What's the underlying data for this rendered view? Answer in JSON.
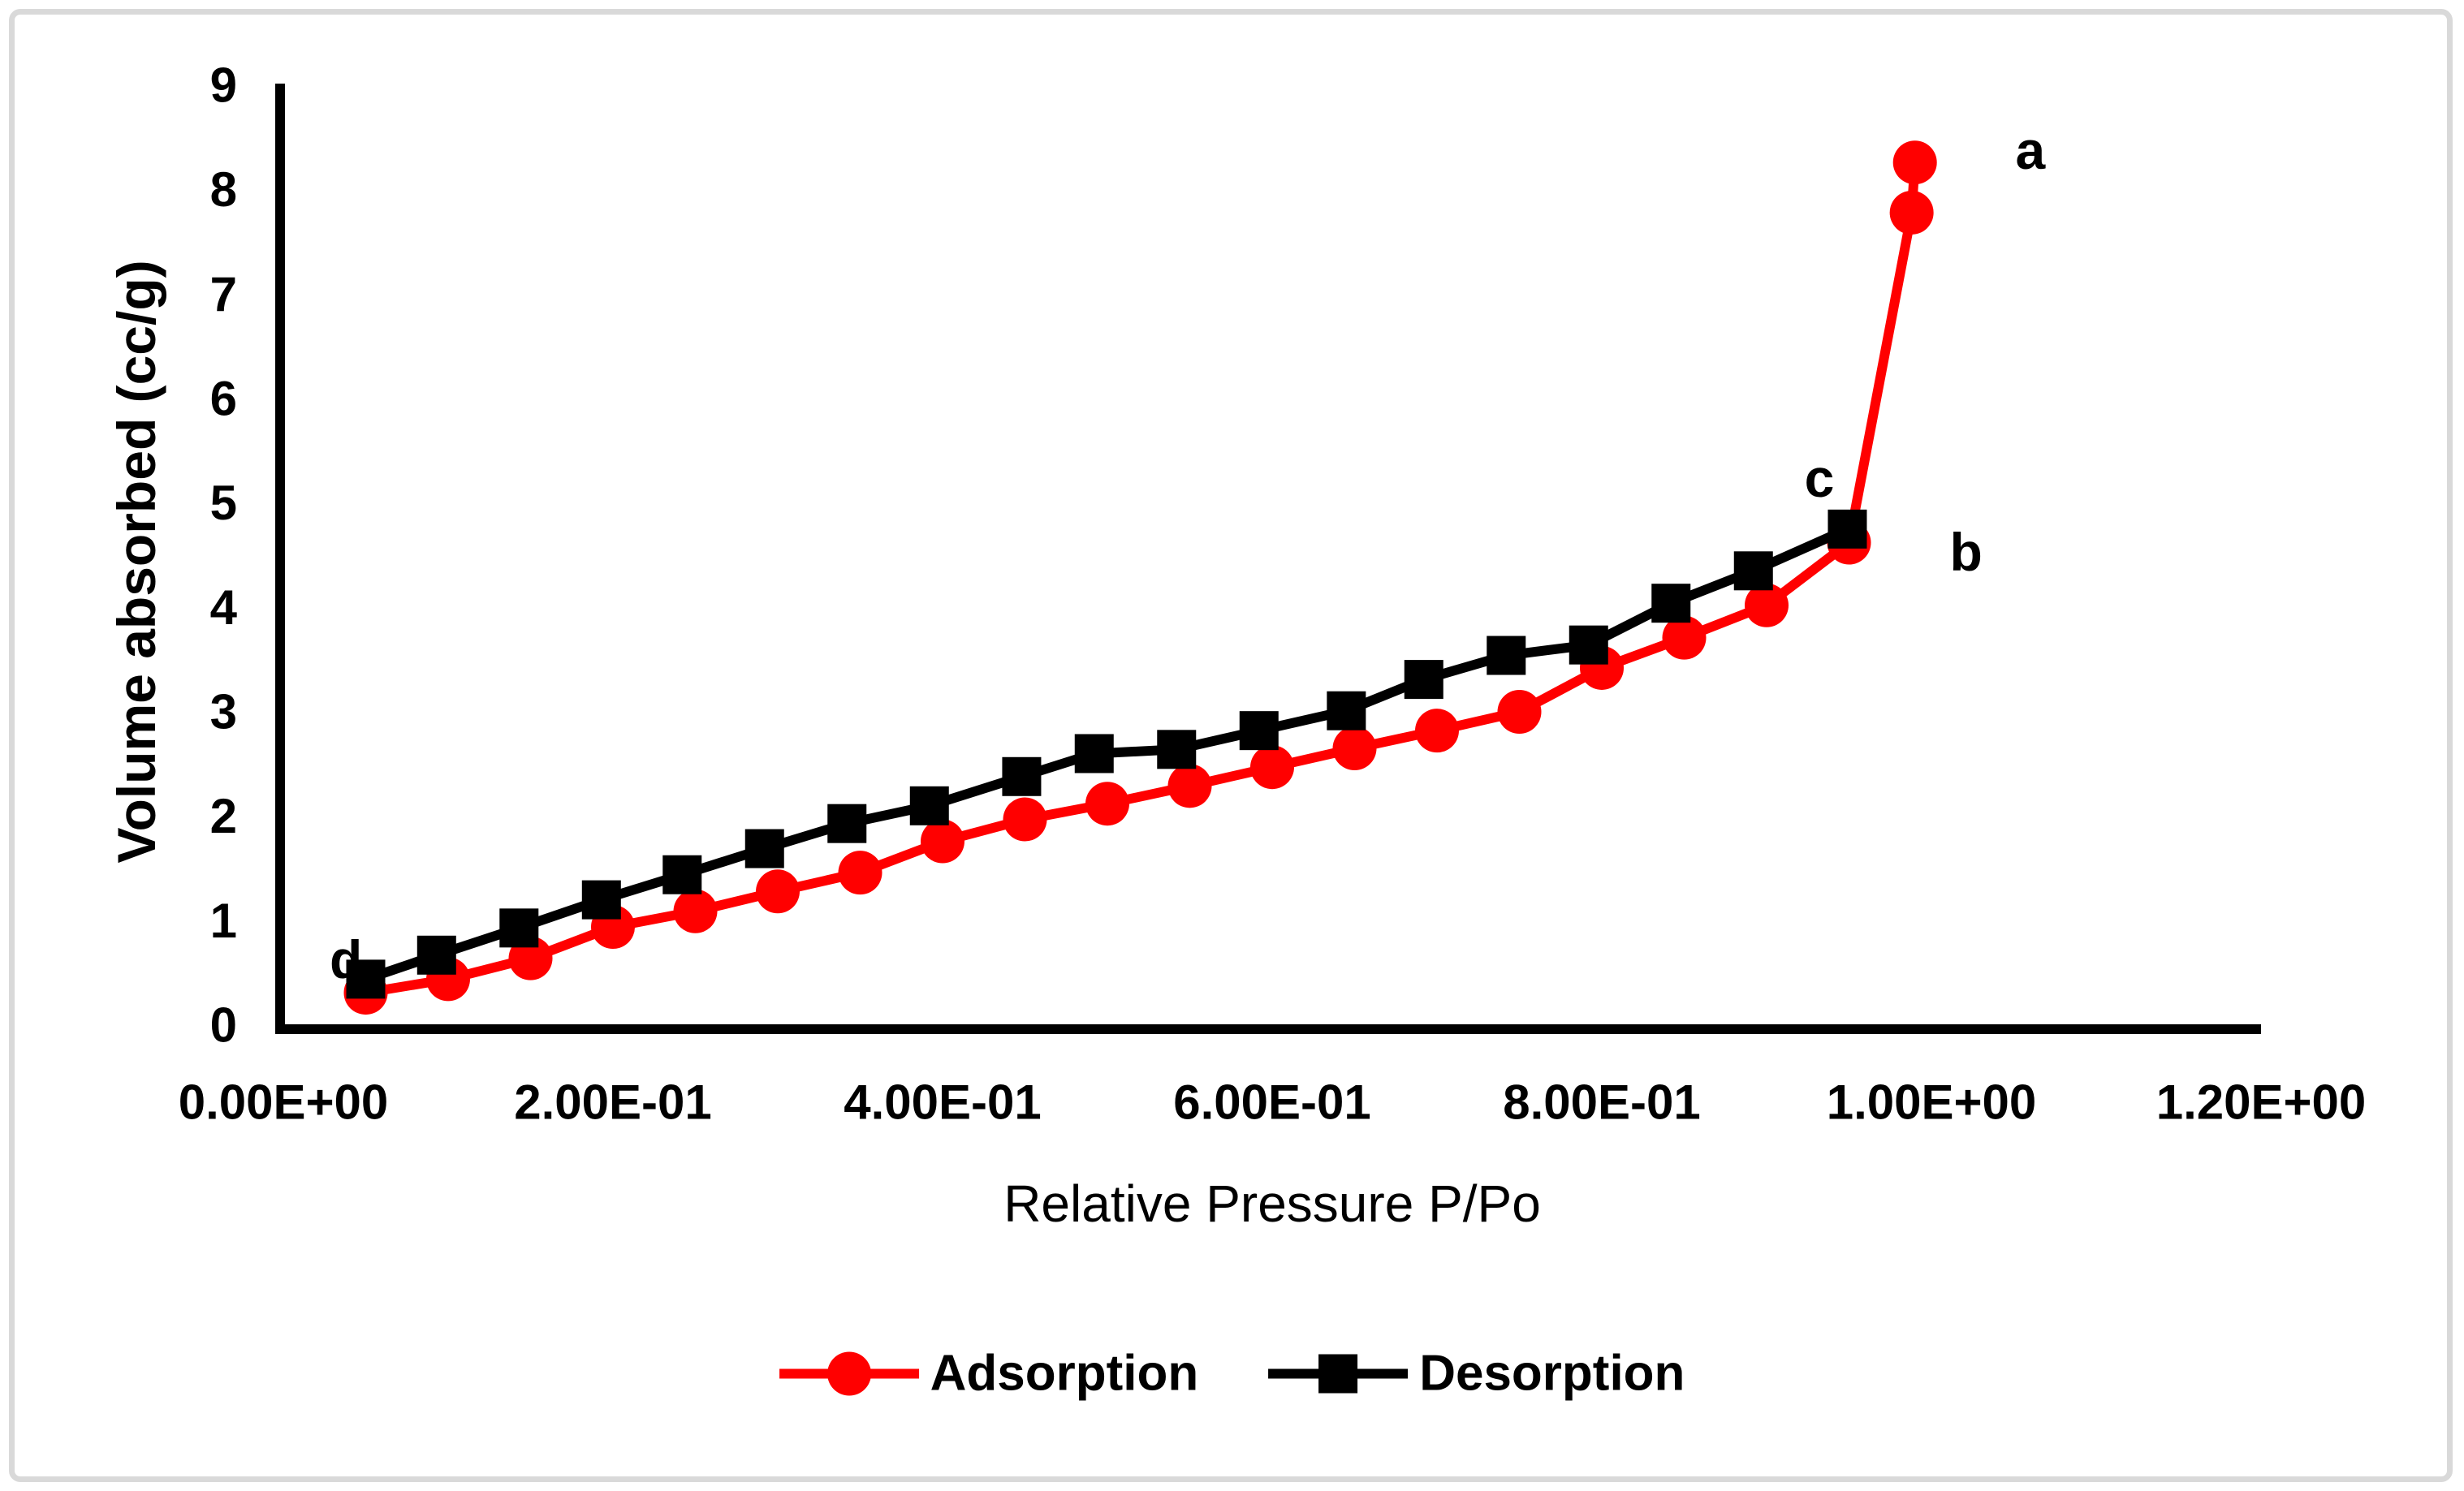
{
  "figure": {
    "background": "#FFFFFF",
    "border_color": "#D9D9D9",
    "axis_color": "#000000"
  },
  "chart_data": {
    "type": "line",
    "title": "",
    "xlabel": "Relative Pressure P/Po",
    "ylabel": "Volume absorbed (cc/g)",
    "xlim": [
      0,
      1.2
    ],
    "ylim": [
      0,
      9
    ],
    "grid": false,
    "legend_position": "bottom-center",
    "x_ticks": {
      "values": [
        0,
        0.2,
        0.4,
        0.6,
        0.8,
        1.0,
        1.2
      ],
      "labels": [
        "0.00E+00",
        "2.00E-01",
        "4.00E-01",
        "6.00E-01",
        "8.00E-01",
        "1.00E+00",
        "1.20E+00"
      ]
    },
    "y_ticks": {
      "values": [
        0,
        1,
        2,
        3,
        4,
        5,
        6,
        7,
        8,
        9
      ],
      "labels": [
        "0",
        "1",
        "2",
        "3",
        "4",
        "5",
        "6",
        "7",
        "8",
        "9"
      ]
    },
    "series": [
      {
        "name": "Adsorption",
        "color": "#FF0000",
        "marker": "circle",
        "points": [
          [
            0.05,
            0.31
          ],
          [
            0.1,
            0.44
          ],
          [
            0.15,
            0.64
          ],
          [
            0.2,
            0.94
          ],
          [
            0.25,
            1.09
          ],
          [
            0.3,
            1.28
          ],
          [
            0.35,
            1.46
          ],
          [
            0.4,
            1.76
          ],
          [
            0.45,
            1.97
          ],
          [
            0.5,
            2.12
          ],
          [
            0.55,
            2.29
          ],
          [
            0.6,
            2.47
          ],
          [
            0.65,
            2.65
          ],
          [
            0.7,
            2.82
          ],
          [
            0.75,
            3.0
          ],
          [
            0.8,
            3.42
          ],
          [
            0.85,
            3.71
          ],
          [
            0.9,
            4.02
          ],
          [
            0.95,
            4.62
          ],
          [
            0.988,
            7.78
          ],
          [
            0.99,
            8.26
          ]
        ]
      },
      {
        "name": "Desorption",
        "color": "#000000",
        "marker": "square",
        "points": [
          [
            0.05,
            0.44
          ],
          [
            0.093,
            0.67
          ],
          [
            0.143,
            0.93
          ],
          [
            0.193,
            1.2
          ],
          [
            0.242,
            1.44
          ],
          [
            0.292,
            1.69
          ],
          [
            0.342,
            1.93
          ],
          [
            0.392,
            2.1
          ],
          [
            0.448,
            2.38
          ],
          [
            0.492,
            2.6
          ],
          [
            0.542,
            2.64
          ],
          [
            0.592,
            2.82
          ],
          [
            0.645,
            3.01
          ],
          [
            0.692,
            3.31
          ],
          [
            0.742,
            3.54
          ],
          [
            0.792,
            3.64
          ],
          [
            0.842,
            4.04
          ],
          [
            0.892,
            4.35
          ],
          [
            0.949,
            4.75
          ]
        ]
      }
    ],
    "annotations": [
      {
        "label": "a",
        "x": 1.06,
        "y": 8.38
      },
      {
        "label": "b",
        "x": 1.021,
        "y": 4.53
      },
      {
        "label": "c",
        "x": 0.932,
        "y": 5.24
      },
      {
        "label": "d",
        "x": 0.038,
        "y": 0.63
      }
    ]
  }
}
